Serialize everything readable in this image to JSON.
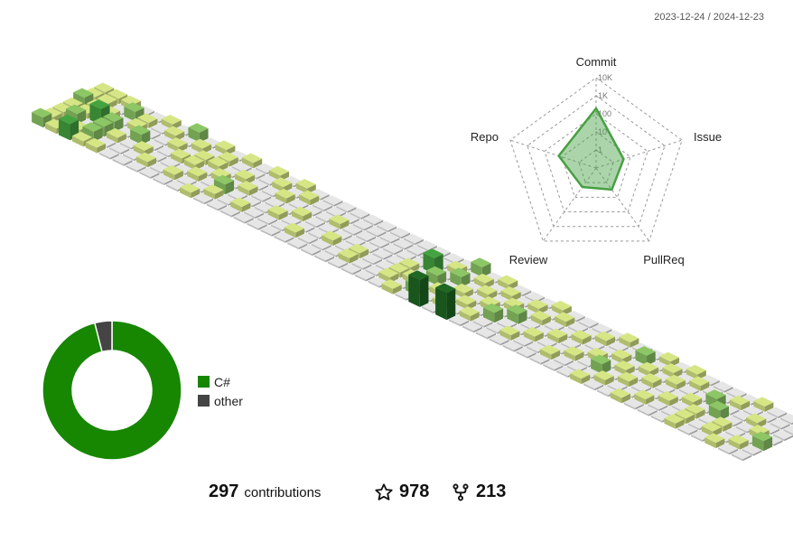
{
  "period": "2023-12-24 / 2024-12-23",
  "stats": {
    "contributions": "297",
    "contributions_label": "contributions",
    "stars": "978",
    "forks": "213"
  },
  "colors": {
    "empty": "#e6e6e6",
    "l1": "#d6e685",
    "l2": "#8cc665",
    "l3": "#44a340",
    "l4": "#1e6823",
    "radar": "#47a042",
    "csharp": "#178600",
    "other": "#444444"
  },
  "chart_data": [
    {
      "type": "heatmap",
      "grid": {
        "weeks": 53,
        "days": 7
      },
      "cells": [
        [
          0,
          0,
          2
        ],
        [
          0,
          1,
          1
        ],
        [
          0,
          2,
          1
        ],
        [
          0,
          3,
          1
        ],
        [
          0,
          4,
          2
        ],
        [
          0,
          5,
          1
        ],
        [
          0,
          6,
          1
        ],
        [
          1,
          0,
          1
        ],
        [
          1,
          2,
          2
        ],
        [
          1,
          3,
          1
        ],
        [
          1,
          4,
          1
        ],
        [
          1,
          5,
          1
        ],
        [
          1,
          6,
          1
        ],
        [
          2,
          0,
          3
        ],
        [
          2,
          1,
          1
        ],
        [
          2,
          3,
          3
        ],
        [
          2,
          4,
          1
        ],
        [
          2,
          6,
          1
        ],
        [
          3,
          0,
          1
        ],
        [
          3,
          1,
          2
        ],
        [
          3,
          2,
          2
        ],
        [
          3,
          3,
          2
        ],
        [
          3,
          5,
          2
        ],
        [
          4,
          0,
          1
        ],
        [
          4,
          2,
          1
        ],
        [
          4,
          4,
          1
        ],
        [
          4,
          5,
          1
        ],
        [
          5,
          3,
          2
        ],
        [
          5,
          6,
          1
        ],
        [
          6,
          2,
          1
        ],
        [
          6,
          5,
          1
        ],
        [
          7,
          1,
          1
        ],
        [
          7,
          4,
          1
        ],
        [
          7,
          6,
          2
        ],
        [
          8,
          3,
          1
        ],
        [
          8,
          5,
          1
        ],
        [
          9,
          1,
          1
        ],
        [
          9,
          3,
          1
        ],
        [
          9,
          4,
          1
        ],
        [
          9,
          6,
          1
        ],
        [
          10,
          2,
          1
        ],
        [
          10,
          4,
          1
        ],
        [
          10,
          5,
          1
        ],
        [
          11,
          0,
          1
        ],
        [
          11,
          3,
          1
        ],
        [
          11,
          6,
          1
        ],
        [
          12,
          1,
          1
        ],
        [
          12,
          2,
          2
        ],
        [
          12,
          4,
          1
        ],
        [
          13,
          3,
          1
        ],
        [
          13,
          6,
          1
        ],
        [
          14,
          1,
          1
        ],
        [
          14,
          5,
          1
        ],
        [
          15,
          4,
          1
        ],
        [
          15,
          6,
          1
        ],
        [
          16,
          2,
          1
        ],
        [
          16,
          5,
          1
        ],
        [
          17,
          3,
          1
        ],
        [
          18,
          1,
          1
        ],
        [
          19,
          4,
          1
        ],
        [
          20,
          2,
          1
        ],
        [
          22,
          1,
          1
        ],
        [
          22,
          2,
          1
        ],
        [
          25,
          1,
          1
        ],
        [
          25,
          2,
          1
        ],
        [
          25,
          3,
          1
        ],
        [
          26,
          0,
          1
        ],
        [
          26,
          2,
          1
        ],
        [
          26,
          4,
          3
        ],
        [
          27,
          1,
          2
        ],
        [
          27,
          3,
          2
        ],
        [
          27,
          5,
          1
        ],
        [
          28,
          0,
          4
        ],
        [
          28,
          2,
          1
        ],
        [
          28,
          4,
          2
        ],
        [
          28,
          6,
          2
        ],
        [
          29,
          1,
          1
        ],
        [
          29,
          3,
          1
        ],
        [
          29,
          5,
          1
        ],
        [
          30,
          0,
          4
        ],
        [
          30,
          2,
          1
        ],
        [
          30,
          4,
          1
        ],
        [
          30,
          6,
          1
        ],
        [
          31,
          1,
          1
        ],
        [
          31,
          3,
          1
        ],
        [
          31,
          5,
          1
        ],
        [
          32,
          2,
          2
        ],
        [
          32,
          4,
          1
        ],
        [
          33,
          3,
          2
        ],
        [
          33,
          5,
          1
        ],
        [
          34,
          1,
          1
        ],
        [
          34,
          4,
          1
        ],
        [
          34,
          6,
          1
        ],
        [
          35,
          2,
          1
        ],
        [
          35,
          5,
          1
        ],
        [
          36,
          3,
          1
        ],
        [
          37,
          1,
          1
        ],
        [
          37,
          4,
          1
        ],
        [
          38,
          2,
          1
        ],
        [
          38,
          5,
          1
        ],
        [
          39,
          3,
          1
        ],
        [
          39,
          6,
          1
        ],
        [
          40,
          0,
          1
        ],
        [
          40,
          2,
          2
        ],
        [
          40,
          4,
          1
        ],
        [
          41,
          1,
          1
        ],
        [
          41,
          3,
          1
        ],
        [
          41,
          5,
          2
        ],
        [
          42,
          2,
          1
        ],
        [
          42,
          4,
          1
        ],
        [
          42,
          6,
          1
        ],
        [
          43,
          0,
          1
        ],
        [
          43,
          3,
          1
        ],
        [
          43,
          5,
          1
        ],
        [
          44,
          1,
          1
        ],
        [
          44,
          4,
          1
        ],
        [
          44,
          6,
          1
        ],
        [
          45,
          2,
          1
        ],
        [
          45,
          5,
          1
        ],
        [
          46,
          3,
          1
        ],
        [
          47,
          0,
          1
        ],
        [
          47,
          1,
          1
        ],
        [
          47,
          2,
          1
        ],
        [
          47,
          4,
          2
        ],
        [
          48,
          3,
          2
        ],
        [
          48,
          5,
          1
        ],
        [
          49,
          1,
          1
        ],
        [
          49,
          2,
          1
        ],
        [
          49,
          6,
          1
        ],
        [
          50,
          0,
          1
        ],
        [
          50,
          4,
          1
        ],
        [
          51,
          1,
          1
        ],
        [
          51,
          3,
          1
        ],
        [
          52,
          2,
          2
        ]
      ]
    },
    {
      "type": "radar",
      "axes": [
        "Commit",
        "Issue",
        "PullReq",
        "Review",
        "Repo"
      ],
      "scale_labels": [
        "1",
        "10",
        "100",
        "1K",
        "10K"
      ],
      "values": [
        200,
        4,
        3,
        2,
        15
      ]
    },
    {
      "type": "pie",
      "labels": [
        "C#",
        "other"
      ],
      "values": [
        96,
        4
      ]
    }
  ]
}
